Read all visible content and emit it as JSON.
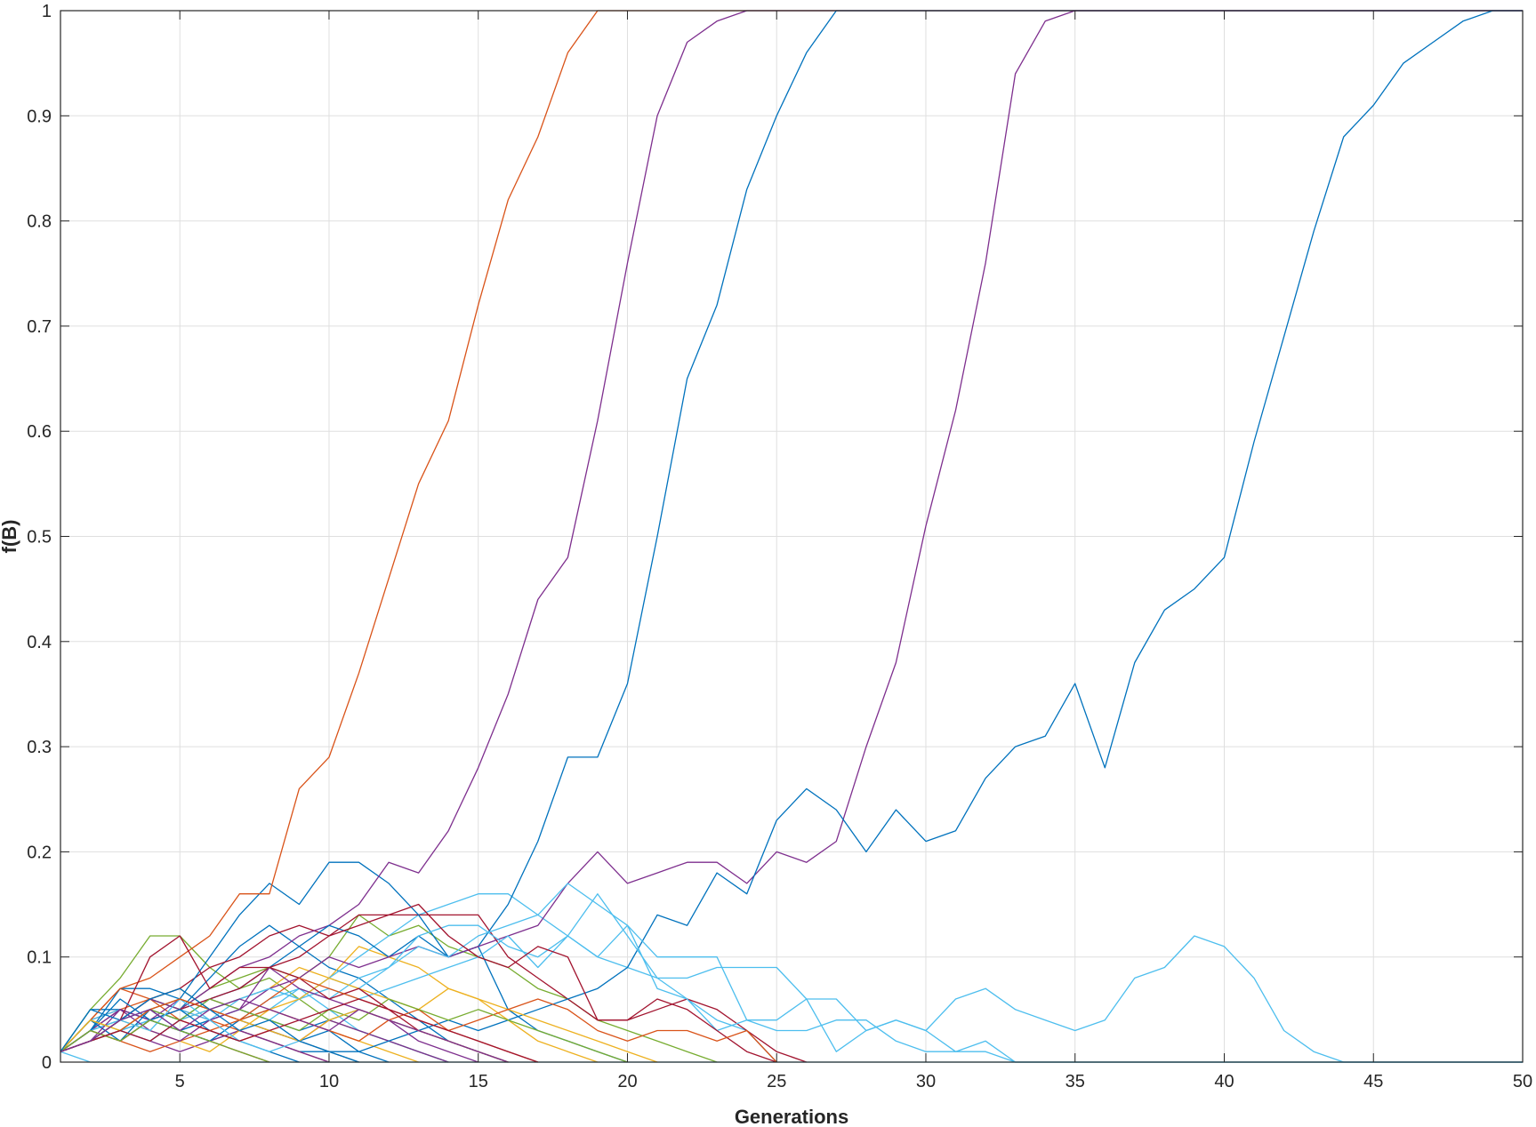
{
  "chart_data": {
    "type": "line",
    "title": "",
    "xlabel": "Generations",
    "ylabel": "f(B)",
    "xlim": [
      1,
      50
    ],
    "ylim": [
      0,
      1
    ],
    "x_ticks": [
      5,
      10,
      15,
      20,
      25,
      30,
      35,
      40,
      45,
      50
    ],
    "y_ticks": [
      0,
      0.1,
      0.2,
      0.3,
      0.4,
      0.5,
      0.6,
      0.7,
      0.8,
      0.9,
      1
    ],
    "x_tick_labels": [
      "5",
      "10",
      "15",
      "20",
      "25",
      "30",
      "35",
      "40",
      "45",
      "50"
    ],
    "y_tick_labels": [
      "0",
      "0.1",
      "0.2",
      "0.3",
      "0.4",
      "0.5",
      "0.6",
      "0.7",
      "0.8",
      "0.9",
      "1"
    ],
    "grid": true,
    "legend": "none",
    "x_start": 1,
    "series": [
      {
        "color": "#0072BD",
        "values": [
          0.01,
          0.05,
          0.05,
          0.04,
          0.03,
          0.02,
          0.03,
          0.02,
          0.01,
          0.01,
          0.01,
          0
        ]
      },
      {
        "color": "#D95319",
        "values": [
          0.01,
          0.04,
          0.07,
          0.06,
          0.05,
          0.04,
          0.03,
          0.02,
          0.01,
          0
        ]
      },
      {
        "color": "#EDB120",
        "values": [
          0.01,
          0.03,
          0.04,
          0.06,
          0.07,
          0.05,
          0.04,
          0.05,
          0.04,
          0.03,
          0.02,
          0.01,
          0
        ]
      },
      {
        "color": "#7E2F8E",
        "values": [
          0.01,
          0.02,
          0.03,
          0.02,
          0.01,
          0.02,
          0.03,
          0.02,
          0.01,
          0
        ]
      },
      {
        "color": "#77AC30",
        "values": [
          0.01,
          0.05,
          0.08,
          0.12,
          0.12,
          0.09,
          0.07,
          0.08,
          0.06,
          0.04,
          0.03,
          0.02,
          0.01,
          0
        ]
      },
      {
        "color": "#4DBEEE",
        "values": [
          0.01,
          0.03,
          0.04,
          0.05,
          0.06,
          0.05,
          0.04,
          0.06,
          0.07,
          0.05,
          0.03,
          0.02,
          0.01,
          0
        ]
      },
      {
        "color": "#A2142F",
        "values": [
          0.01,
          0.03,
          0.05,
          0.04,
          0.03,
          0.02,
          0.01,
          0
        ]
      },
      {
        "color": "#0072BD",
        "values": [
          0.01,
          0.02,
          0.04,
          0.06,
          0.05,
          0.08,
          0.11,
          0.13,
          0.11,
          0.09,
          0.08,
          0.06,
          0.04,
          0.02,
          0.01,
          0
        ]
      },
      {
        "color": "#D95319",
        "values": [
          0.01,
          0.04,
          0.05,
          0.06,
          0.04,
          0.03,
          0.02,
          0.03,
          0.02,
          0.01,
          0
        ]
      },
      {
        "color": "#EDB120",
        "values": [
          0.01,
          0.02,
          0.03,
          0.05,
          0.04,
          0.05,
          0.06,
          0.07,
          0.09,
          0.08,
          0.11,
          0.1,
          0.09,
          0.07,
          0.06,
          0.04,
          0.02,
          0.01,
          0
        ]
      },
      {
        "color": "#7E2F8E",
        "values": [
          0.01,
          0.03,
          0.02,
          0.04,
          0.06,
          0.05,
          0.04,
          0.03,
          0.02,
          0.04,
          0.03,
          0.02,
          0.01,
          0
        ]
      },
      {
        "color": "#77AC30",
        "values": [
          0.01,
          0.02,
          0.04,
          0.06,
          0.05,
          0.07,
          0.08,
          0.09,
          0.08,
          0.1,
          0.14,
          0.12,
          0.13,
          0.11,
          0.1,
          0.09,
          0.07,
          0.06,
          0.04,
          0.03,
          0.02,
          0.01,
          0
        ]
      },
      {
        "color": "#4DBEEE",
        "values": [
          0.01,
          0.04,
          0.05,
          0.04,
          0.03,
          0.04,
          0.05,
          0.04,
          0.06,
          0.08,
          0.1,
          0.12,
          0.14,
          0.15,
          0.16,
          0.16,
          0.14,
          0.12,
          0.1,
          0.09,
          0.08,
          0.06,
          0.04,
          0.03,
          0
        ]
      },
      {
        "color": "#A2142F",
        "values": [
          0.01,
          0.02,
          0.04,
          0.06,
          0.07,
          0.09,
          0.1,
          0.12,
          0.13,
          0.12,
          0.14,
          0.14,
          0.14,
          0.14,
          0.14,
          0.1,
          0.08,
          0.06,
          0.04,
          0.04,
          0.05,
          0.06,
          0.05,
          0.03,
          0.01,
          0
        ]
      },
      {
        "color": "#0072BD",
        "values": [
          0.01,
          0.03,
          0.07,
          0.07,
          0.06,
          0.1,
          0.14,
          0.17,
          0.15,
          0.19,
          0.19,
          0.17,
          0.14,
          0.1,
          0.11,
          0.05,
          0.03,
          0.02,
          0.01,
          0
        ]
      },
      {
        "color": "#D95319",
        "values": [
          0.01,
          0.04,
          0.07,
          0.08,
          0.1,
          0.12,
          0.16,
          0.16,
          0.26,
          0.29,
          0.37,
          0.46,
          0.55,
          0.61,
          0.72,
          0.82,
          0.88,
          0.96,
          1,
          1,
          1,
          1,
          1,
          1,
          1,
          1,
          1,
          1,
          1,
          1,
          1,
          1,
          1,
          1,
          1,
          1,
          1,
          1,
          1,
          1,
          1,
          1,
          1,
          1,
          1,
          1,
          1,
          1,
          1,
          1
        ]
      },
      {
        "color": "#7E2F8E",
        "values": [
          0.01,
          0.02,
          0.04,
          0.06,
          0.05,
          0.07,
          0.09,
          0.1,
          0.12,
          0.13,
          0.15,
          0.19,
          0.18,
          0.22,
          0.28,
          0.35,
          0.44,
          0.48,
          0.61,
          0.76,
          0.9,
          0.97,
          0.99,
          1,
          1,
          1,
          1,
          1,
          1,
          1,
          1,
          1,
          1,
          1,
          1,
          1,
          1,
          1,
          1,
          1,
          1,
          1,
          1,
          1,
          1,
          1,
          1,
          1,
          1,
          1
        ]
      },
      {
        "color": "#0072BD",
        "values": [
          0.01,
          0.02,
          0.03,
          0.05,
          0.04,
          0.06,
          0.07,
          0.09,
          0.11,
          0.13,
          0.12,
          0.1,
          0.12,
          0.1,
          0.11,
          0.15,
          0.21,
          0.29,
          0.29,
          0.36,
          0.5,
          0.65,
          0.72,
          0.83,
          0.9,
          0.96,
          1,
          1,
          1,
          1,
          1,
          1,
          1,
          1,
          1,
          1,
          1,
          1,
          1,
          1,
          1,
          1,
          1,
          1,
          1,
          1,
          1,
          1,
          1,
          1
        ]
      },
      {
        "color": "#7E2F8E",
        "values": [
          0.01,
          0.03,
          0.05,
          0.04,
          0.05,
          0.06,
          0.05,
          0.07,
          0.08,
          0.1,
          0.09,
          0.1,
          0.11,
          0.1,
          0.11,
          0.12,
          0.13,
          0.17,
          0.2,
          0.17,
          0.18,
          0.19,
          0.19,
          0.17,
          0.2,
          0.19,
          0.21,
          0.3,
          0.38,
          0.51,
          0.62,
          0.76,
          0.94,
          0.99,
          1,
          1,
          1,
          1,
          1,
          1,
          1,
          1,
          1,
          1,
          1,
          1,
          1,
          1,
          1,
          1
        ]
      },
      {
        "color": "#0072BD",
        "values": [
          0.01,
          0.02,
          0.03,
          0.04,
          0.03,
          0.04,
          0.05,
          0.04,
          0.03,
          0.04,
          0.05,
          0.04,
          0.03,
          0.04,
          0.03,
          0.04,
          0.05,
          0.06,
          0.07,
          0.09,
          0.14,
          0.13,
          0.18,
          0.16,
          0.23,
          0.26,
          0.24,
          0.2,
          0.24,
          0.21,
          0.22,
          0.27,
          0.3,
          0.31,
          0.36,
          0.28,
          0.38,
          0.43,
          0.45,
          0.48,
          0.59,
          0.69,
          0.79,
          0.88,
          0.91,
          0.95,
          0.97,
          0.99,
          1,
          1
        ]
      },
      {
        "color": "#4DBEEE",
        "values": [
          0.01,
          0.02,
          0.03,
          0.04,
          0.05,
          0.04,
          0.06,
          0.07,
          0.06,
          0.08,
          0.07,
          0.09,
          0.11,
          0.1,
          0.12,
          0.13,
          0.14,
          0.17,
          0.15,
          0.13,
          0.1,
          0.1,
          0.1,
          0.04,
          0.04,
          0.06,
          0.01,
          0.03,
          0.04,
          0.03,
          0.06,
          0.07,
          0.05,
          0.04,
          0.03,
          0.04,
          0.08,
          0.09,
          0.12,
          0.11,
          0.08,
          0.03,
          0.01,
          0,
          0,
          0,
          0,
          0,
          0,
          0
        ]
      },
      {
        "color": "#4DBEEE",
        "values": [
          0.01,
          0.03,
          0.04,
          0.05,
          0.06,
          0.05,
          0.06,
          0.07,
          0.06,
          0.07,
          0.06,
          0.07,
          0.08,
          0.09,
          0.1,
          0.12,
          0.09,
          0.12,
          0.1,
          0.13,
          0.07,
          0.06,
          0.03,
          0.04,
          0.03,
          0.03,
          0.04,
          0.04,
          0.02,
          0.01,
          0.01,
          0.02,
          0,
          0,
          0,
          0,
          0,
          0,
          0,
          0,
          0,
          0,
          0,
          0,
          0,
          0,
          0,
          0,
          0,
          0
        ]
      },
      {
        "color": "#4DBEEE",
        "values": [
          0.01,
          0.02,
          0.03,
          0.02,
          0.04,
          0.05,
          0.04,
          0.05,
          0.07,
          0.06,
          0.08,
          0.09,
          0.12,
          0.13,
          0.13,
          0.11,
          0.1,
          0.12,
          0.16,
          0.12,
          0.08,
          0.08,
          0.09,
          0.09,
          0.09,
          0.06,
          0.06,
          0.03,
          0.04,
          0.03,
          0.01,
          0.01,
          0,
          0,
          0,
          0,
          0,
          0,
          0,
          0,
          0,
          0,
          0,
          0,
          0,
          0,
          0,
          0,
          0,
          0
        ]
      },
      {
        "color": "#4DBEEE",
        "values": [
          0.01,
          0,
          0,
          0,
          0,
          0,
          0,
          0,
          0,
          0,
          0,
          0,
          0,
          0,
          0,
          0,
          0,
          0,
          0,
          0,
          0,
          0,
          0,
          0,
          0,
          0,
          0,
          0,
          0,
          0,
          0,
          0,
          0,
          0,
          0,
          0,
          0,
          0,
          0,
          0,
          0,
          0,
          0,
          0,
          0,
          0,
          0,
          0,
          0,
          0
        ]
      },
      {
        "color": "#A2142F",
        "values": [
          0.01,
          0.03,
          0.02,
          0.04,
          0.05,
          0.06,
          0.07,
          0.09,
          0.1,
          0.12,
          0.13,
          0.14,
          0.15,
          0.12,
          0.1,
          0.09,
          0.11,
          0.1,
          0.04,
          0.04,
          0.06,
          0.05,
          0.03,
          0.01,
          0
        ]
      },
      {
        "color": "#0072BD",
        "values": [
          0.01,
          0.04,
          0.02,
          0.05,
          0.03,
          0.02,
          0.04,
          0.03,
          0.02,
          0.03,
          0.01,
          0.02,
          0.03,
          0.02,
          0.01,
          0
        ]
      },
      {
        "color": "#EDB120",
        "values": [
          0.01,
          0.02,
          0.04,
          0.03,
          0.02,
          0.01,
          0.03,
          0.05,
          0.06,
          0.08,
          0.07,
          0.06,
          0.05,
          0.07,
          0.06,
          0.05,
          0.04,
          0.03,
          0.02,
          0.01,
          0
        ]
      },
      {
        "color": "#D95319",
        "values": [
          0.01,
          0.03,
          0.02,
          0.01,
          0.02,
          0.03,
          0.04,
          0.05,
          0.04,
          0.03,
          0.02,
          0.04,
          0.05,
          0.03,
          0.04,
          0.05,
          0.06,
          0.05,
          0.03,
          0.02,
          0.03,
          0.03,
          0.02,
          0.03,
          0
        ]
      },
      {
        "color": "#77AC30",
        "values": [
          0.01,
          0.04,
          0.03,
          0.05,
          0.04,
          0.06,
          0.05,
          0.04,
          0.03,
          0.05,
          0.04,
          0.06,
          0.05,
          0.04,
          0.05,
          0.04,
          0.03,
          0.02,
          0.01,
          0
        ]
      },
      {
        "color": "#7E2F8E",
        "values": [
          0.01,
          0.02,
          0.05,
          0.03,
          0.02,
          0.04,
          0.05,
          0.09,
          0.07,
          0.06,
          0.05,
          0.04,
          0.02,
          0.01,
          0
        ]
      },
      {
        "color": "#A2142F",
        "values": [
          0.01,
          0.02,
          0.04,
          0.1,
          0.12,
          0.07,
          0.09,
          0.09,
          0.08,
          0.06,
          0.07,
          0.05,
          0.03,
          0.02,
          0.01,
          0
        ]
      },
      {
        "color": "#0072BD",
        "values": [
          0.01,
          0.03,
          0.06,
          0.04,
          0.05,
          0.03,
          0.02,
          0.01,
          0
        ]
      },
      {
        "color": "#4DBEEE",
        "values": [
          0.01,
          0.02,
          0.04,
          0.03,
          0.06,
          0.04,
          0.02,
          0.01,
          0.02,
          0.01,
          0
        ]
      },
      {
        "color": "#EDB120",
        "values": [
          0.01,
          0.04,
          0.03,
          0.05,
          0.06,
          0.05,
          0.04,
          0.03,
          0.02,
          0.04,
          0.05,
          0.04,
          0.03,
          0.02,
          0.01,
          0
        ]
      },
      {
        "color": "#D95319",
        "values": [
          0.01,
          0.02,
          0.03,
          0.05,
          0.06,
          0.05,
          0.04,
          0.06,
          0.08,
          0.07,
          0.06,
          0.05,
          0.04,
          0.03,
          0.02,
          0.01,
          0
        ]
      },
      {
        "color": "#77AC30",
        "values": [
          0.01,
          0.03,
          0.02,
          0.04,
          0.03,
          0.02,
          0.01,
          0
        ]
      },
      {
        "color": "#A2142F",
        "values": [
          0.01,
          0.02,
          0.03,
          0.02,
          0.04,
          0.03,
          0.02,
          0.03,
          0.04,
          0.05,
          0.06,
          0.05,
          0.04,
          0.03,
          0.02,
          0.01,
          0
        ]
      },
      {
        "color": "#0072BD",
        "values": [
          0.01,
          0.05,
          0.04,
          0.06,
          0.07,
          0.05,
          0.03,
          0.04,
          0.02,
          0.01,
          0
        ]
      },
      {
        "color": "#7E2F8E",
        "values": [
          0.01,
          0.02,
          0.04,
          0.05,
          0.03,
          0.05,
          0.06,
          0.05,
          0.04,
          0.03,
          0.05,
          0.04,
          0.03,
          0.02,
          0.01,
          0
        ]
      }
    ]
  }
}
